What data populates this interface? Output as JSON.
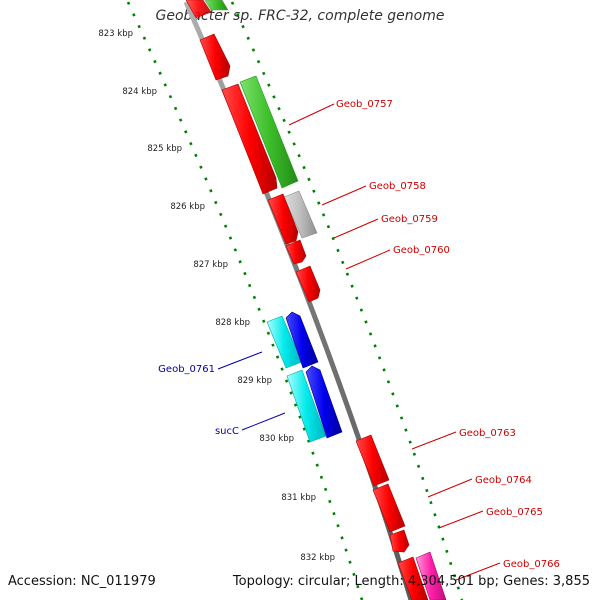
{
  "title": "Geobacter sp. FRC-32, complete genome",
  "accession": "Accession: NC_011979",
  "summary": "Topology: circular; Length: 4,304,501 bp; Genes: 3,855",
  "colors": {
    "backbone": "#888888",
    "ticks": "#008000",
    "forward_label": "#cc0000",
    "reverse_label": "#0000aa"
  },
  "scale_labels": [
    "823 kbp",
    "824 kbp",
    "825 kbp",
    "826 kbp",
    "827 kbp",
    "828 kbp",
    "829 kbp",
    "830 kbp",
    "831 kbp",
    "832 kbp"
  ],
  "gene_labels": {
    "geob_0757": "Geob_0757",
    "geob_0758": "Geob_0758",
    "geob_0759": "Geob_0759",
    "geob_0760": "Geob_0760",
    "geob_0761": "Geob_0761",
    "succ": "sucC",
    "geob_0763": "Geob_0763",
    "geob_0764": "Geob_0764",
    "geob_0765": "Geob_0765",
    "geob_0766": "Geob_0766"
  }
}
